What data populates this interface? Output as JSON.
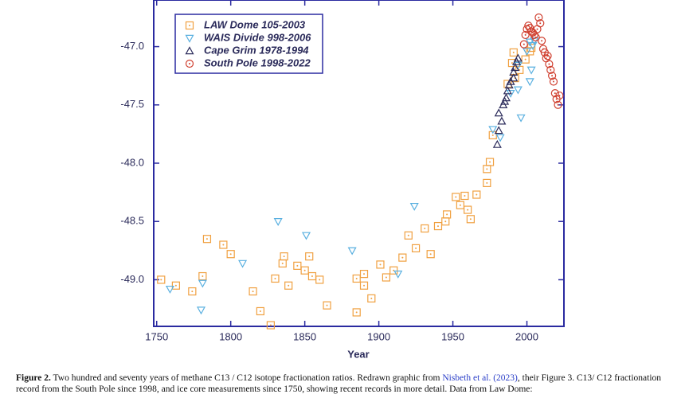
{
  "chart_data": {
    "type": "scatter",
    "x_label": "Year",
    "xlim": [
      1748,
      2025
    ],
    "ylim": [
      -49.4,
      -46.6
    ],
    "xticks": [
      1750,
      1800,
      1850,
      1900,
      1950,
      2000
    ],
    "yticks": [
      {
        "value": -47.0,
        "label": "-47.0"
      },
      {
        "value": -47.5,
        "label": "-47.5"
      },
      {
        "value": -48.0,
        "label": "-48.0"
      },
      {
        "value": -48.5,
        "label": "-48.5"
      },
      {
        "value": -49.0,
        "label": "-49.0"
      }
    ],
    "legend": "upper left",
    "series": [
      {
        "name": "LAW Dome 105-2003",
        "color": "#f0a040",
        "marker": "square",
        "x": [
          1753,
          1763,
          1774,
          1781,
          1784,
          1795,
          1800,
          1815,
          1820,
          1827,
          1830,
          1835,
          1836,
          1839,
          1845,
          1850,
          1853,
          1855,
          1860,
          1865,
          1885,
          1885,
          1890,
          1890,
          1895,
          1901,
          1905,
          1910,
          1916,
          1920,
          1925,
          1931,
          1935,
          1940,
          1945,
          1946,
          1952,
          1955,
          1958,
          1960,
          1962,
          1966,
          1973,
          1973,
          1975,
          1977,
          1987,
          1990,
          1991,
          1992,
          1995,
          1999,
          2002,
          2003
        ],
        "values": [
          -49.0,
          -49.05,
          -49.1,
          -48.97,
          -48.65,
          -48.7,
          -48.78,
          -49.1,
          -49.27,
          -49.39,
          -48.99,
          -48.86,
          -48.8,
          -49.05,
          -48.88,
          -48.92,
          -48.8,
          -48.97,
          -49.0,
          -49.22,
          -48.99,
          -49.28,
          -48.95,
          -49.05,
          -49.16,
          -48.87,
          -48.98,
          -48.92,
          -48.81,
          -48.62,
          -48.73,
          -48.56,
          -48.78,
          -48.54,
          -48.5,
          -48.44,
          -48.29,
          -48.36,
          -48.28,
          -48.4,
          -48.48,
          -48.27,
          -48.17,
          -48.05,
          -47.99,
          -47.76,
          -47.32,
          -47.14,
          -47.05,
          -47.27,
          -47.2,
          -47.11,
          -47.04,
          -47.01
        ]
      },
      {
        "name": "WAIS Divide 998-2006",
        "color": "#5ab0e0",
        "marker": "triangle-down",
        "x": [
          1759,
          1780,
          1781,
          1808,
          1832,
          1851,
          1882,
          1913,
          1924,
          1977,
          1982,
          1989,
          1994,
          1994,
          1996,
          2000,
          2002,
          2002,
          2003,
          2004,
          2005
        ],
        "values": [
          -49.08,
          -49.26,
          -49.03,
          -48.86,
          -48.5,
          -48.62,
          -48.75,
          -48.95,
          -48.37,
          -47.71,
          -47.78,
          -47.4,
          -47.37,
          -47.16,
          -47.61,
          -47.04,
          -47.3,
          -46.96,
          -47.2,
          -46.99,
          -46.95
        ]
      },
      {
        "name": "Cape Grim 1978-1994",
        "color": "#2a2a5a",
        "marker": "triangle-up",
        "x": [
          1980,
          1981,
          1981,
          1983,
          1984,
          1985,
          1986,
          1987,
          1988,
          1989,
          1991,
          1991,
          1992,
          1993,
          1994
        ],
        "values": [
          -47.84,
          -47.72,
          -47.57,
          -47.64,
          -47.5,
          -47.47,
          -47.44,
          -47.38,
          -47.33,
          -47.3,
          -47.27,
          -47.22,
          -47.18,
          -47.13,
          -47.1
        ]
      },
      {
        "name": "South Pole 1998-2022",
        "color": "#d04030",
        "marker": "circle",
        "x": [
          1998,
          1999,
          2000,
          2001,
          2002,
          2003,
          2004,
          2005,
          2006,
          2007,
          2008,
          2009,
          2010,
          2011,
          2012,
          2013,
          2014,
          2015,
          2016,
          2017,
          2018,
          2019,
          2020,
          2021,
          2022
        ],
        "values": [
          -46.98,
          -46.9,
          -46.85,
          -46.82,
          -46.84,
          -46.87,
          -46.88,
          -46.9,
          -46.92,
          -46.85,
          -46.75,
          -46.8,
          -46.95,
          -47.02,
          -47.05,
          -47.1,
          -47.08,
          -47.15,
          -47.2,
          -47.25,
          -47.3,
          -47.4,
          -47.45,
          -47.5,
          -47.42
        ]
      }
    ]
  },
  "caption": {
    "label": "Figure 2.",
    "text1": " Two hundred and seventy years of methane C13 / C12 isotope fractionation ratios. Redrawn graphic from ",
    "link": "Nisbeth et al. (2023)",
    "text2": ", their Figure 3. C13/ C12 fractionation record from the South Pole since 1998, and ice core measurements since 1750, showing recent records in more detail. Data from Law Dome:"
  }
}
